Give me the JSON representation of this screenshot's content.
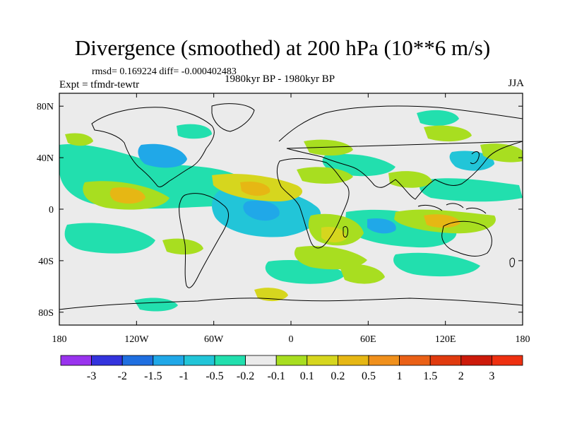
{
  "title": "Divergence (smoothed) at 200 hPa (10**6 m/s)",
  "stats": "rmsd= 0.169224 diff= -0.000402483",
  "expt": "Expt = tfmdr-tewtr",
  "period": "1980kyr BP - 1980kyr BP",
  "season": "JJA",
  "axes": {
    "lon_labels": [
      "180",
      "120W",
      "60W",
      "0",
      "60E",
      "120E",
      "180"
    ],
    "lat_labels": [
      "80N",
      "40N",
      "0",
      "40S",
      "80S"
    ]
  },
  "colorbar": {
    "labels": [
      "-3",
      "-2",
      "-1.5",
      "-1",
      "-0.5",
      "-0.2",
      "-0.1",
      "0.1",
      "0.2",
      "0.5",
      "1",
      "1.5",
      "2",
      "3"
    ],
    "colors": [
      "#9933ee",
      "#3333dd",
      "#1f6fe0",
      "#20a8e8",
      "#22c5d8",
      "#22dfae",
      "#ebebeb",
      "#a8de20",
      "#d6d61e",
      "#e6b714",
      "#f0901c",
      "#ea6016",
      "#e03a0e",
      "#cc1a0a",
      "#ee3010"
    ]
  },
  "colors": {
    "frame": "#000000",
    "ocean_neutral": "#ebebeb",
    "coast": "#000000"
  }
}
